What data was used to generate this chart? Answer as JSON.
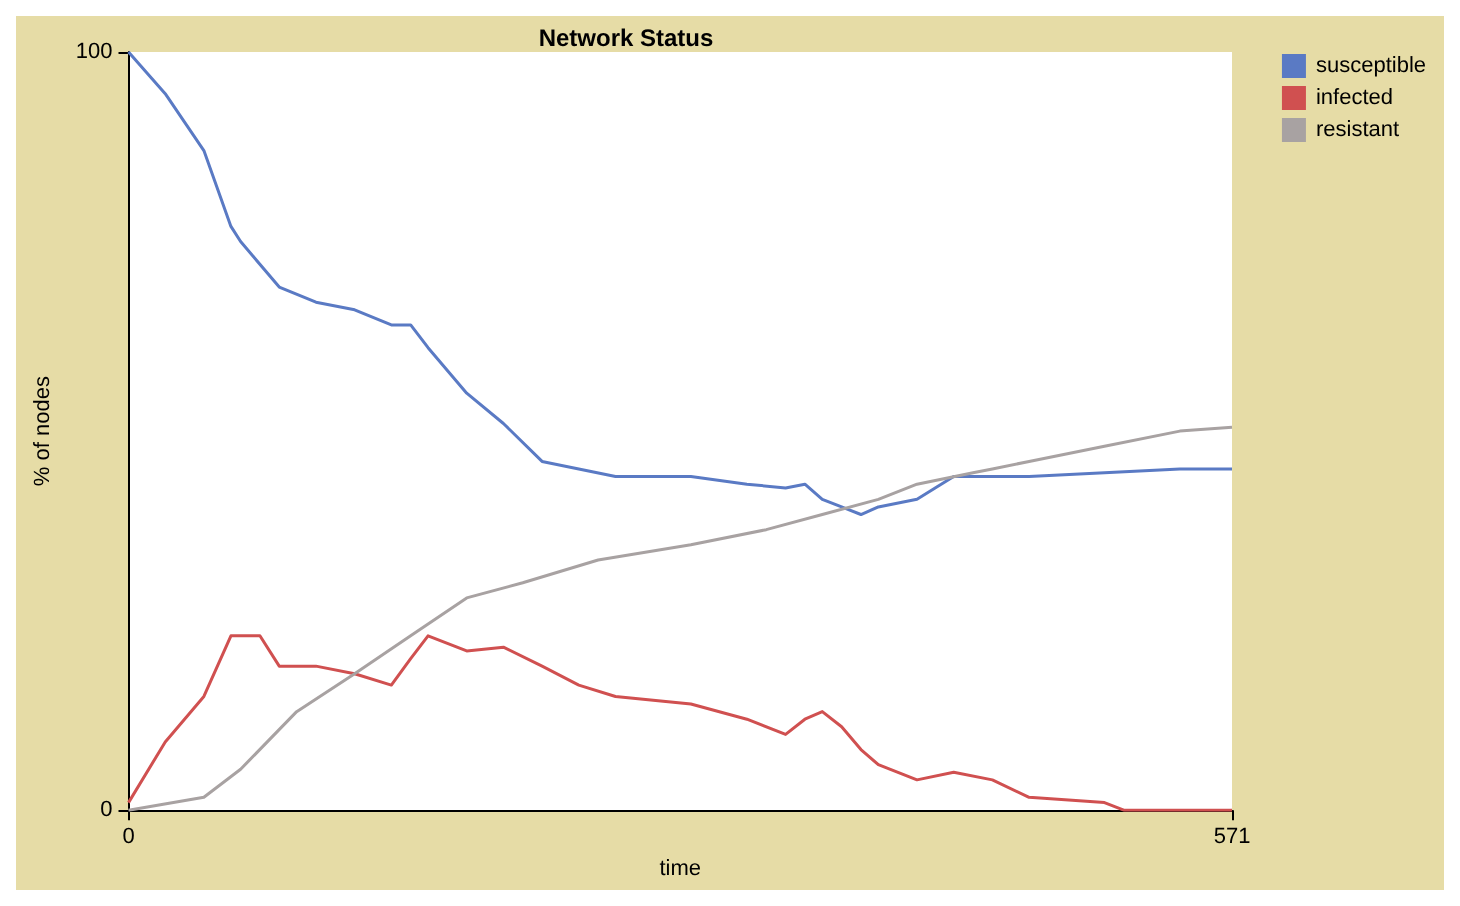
{
  "chart_data": {
    "type": "line",
    "title": "Network Status",
    "xlabel": "time",
    "ylabel": "% of nodes",
    "xlim": [
      0,
      571
    ],
    "ylim": [
      0,
      100
    ],
    "xticks": [
      0,
      571
    ],
    "yticks": [
      0,
      100
    ],
    "grid": false,
    "legend": "top right",
    "series": [
      {
        "name": "susceptible",
        "color": "#5a7ac4",
        "x": [
          0,
          19,
          39,
          53,
          58,
          78,
          97,
          117,
          136,
          146,
          155,
          175,
          194,
          214,
          233,
          252,
          291,
          320,
          340,
          350,
          359,
          369,
          379,
          388,
          408,
          427,
          447,
          466,
          505,
          544,
          571
        ],
        "values": [
          100,
          94.5,
          87,
          77,
          75,
          69,
          67,
          66,
          64,
          64,
          61,
          55,
          51,
          46,
          45,
          44,
          44,
          43,
          42.5,
          43,
          41,
          40,
          39,
          40,
          41,
          44,
          44,
          44,
          44.5,
          45,
          45
        ]
      },
      {
        "name": "infected",
        "color": "#d05050",
        "x": [
          0,
          19,
          39,
          53,
          68,
          78,
          97,
          117,
          136,
          146,
          155,
          175,
          194,
          214,
          233,
          252,
          291,
          320,
          340,
          350,
          359,
          369,
          379,
          388,
          408,
          427,
          447,
          466,
          505,
          515,
          544,
          571
        ],
        "values": [
          1,
          9,
          15,
          23,
          23,
          19,
          19,
          18,
          16.5,
          20,
          23,
          21,
          21.5,
          19,
          16.5,
          15,
          14,
          12,
          10,
          12,
          13,
          11,
          8,
          6,
          4,
          5,
          4,
          1.7,
          1,
          0,
          0,
          0
        ]
      },
      {
        "name": "resistant",
        "color": "#a8a2a2",
        "x": [
          0,
          39,
          58,
          87,
          117,
          146,
          175,
          204,
          243,
          291,
          330,
          359,
          388,
          408,
          437,
          447,
          466,
          505,
          544,
          571
        ],
        "values": [
          0,
          1.7,
          5.4,
          13,
          18,
          23,
          28,
          30,
          33,
          35,
          37,
          39,
          41,
          43,
          44.5,
          45,
          46,
          48,
          50,
          50.5
        ]
      }
    ]
  }
}
